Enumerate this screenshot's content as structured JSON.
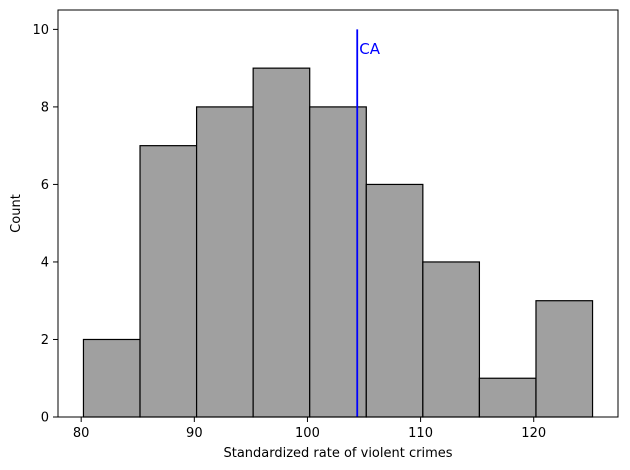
{
  "chart_data": {
    "type": "bar",
    "subtype": "histogram",
    "xlabel": "Standardized rate of violent crimes",
    "ylabel": "Count",
    "bins": [
      {
        "start": 80.2,
        "end": 85.2,
        "count": 2
      },
      {
        "start": 85.2,
        "end": 90.2,
        "count": 7
      },
      {
        "start": 90.2,
        "end": 95.2,
        "count": 8
      },
      {
        "start": 95.2,
        "end": 100.2,
        "count": 9
      },
      {
        "start": 100.2,
        "end": 105.2,
        "count": 8
      },
      {
        "start": 105.2,
        "end": 110.2,
        "count": 6
      },
      {
        "start": 110.2,
        "end": 115.2,
        "count": 4
      },
      {
        "start": 115.2,
        "end": 120.2,
        "count": 1
      },
      {
        "start": 120.2,
        "end": 125.2,
        "count": 3
      }
    ],
    "xlim": [
      77.95,
      127.45
    ],
    "ylim": [
      0,
      10.5
    ],
    "xticks": [
      80,
      90,
      100,
      110,
      120
    ],
    "yticks": [
      0,
      2,
      4,
      6,
      8,
      10
    ],
    "grid": false,
    "bar_color": "#a0a0a0",
    "bar_edge_color": "#000000",
    "annotation": {
      "label": "CA",
      "x": 104.4,
      "y_from": 0,
      "y_to": 10,
      "label_y": 9.5,
      "color": "#0000ff"
    }
  }
}
